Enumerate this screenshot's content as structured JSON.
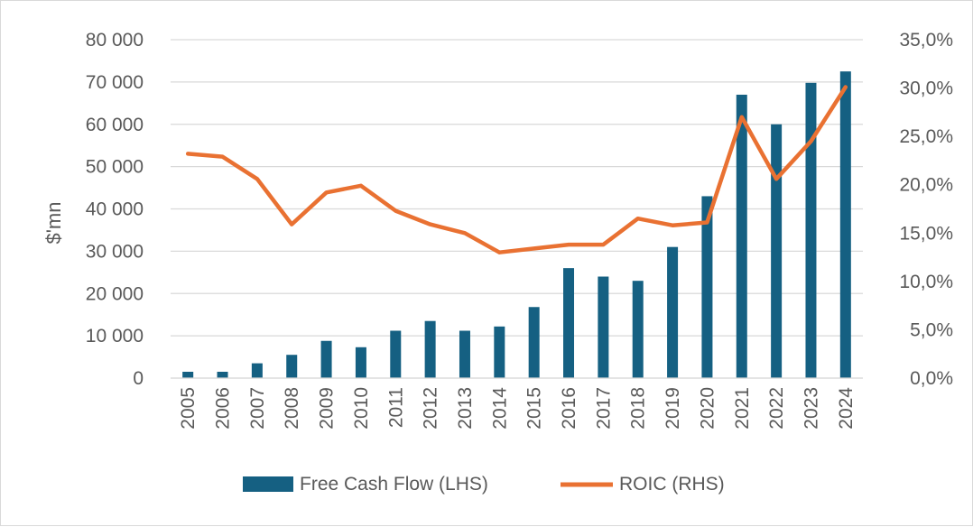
{
  "colors": {
    "bar": "#156082",
    "line": "#E97132",
    "grid": "#d9d9d9",
    "text": "#595959"
  },
  "chart_data": {
    "type": "bar+line",
    "title": "",
    "ylabel": "$'mn",
    "categories": [
      "2005",
      "2006",
      "2007",
      "2008",
      "2009",
      "2010",
      "2011",
      "2012",
      "2013",
      "2014",
      "2015",
      "2016",
      "2017",
      "2018",
      "2019",
      "2020",
      "2021",
      "2022",
      "2023",
      "2024"
    ],
    "series": [
      {
        "name": "Free Cash Flow (LHS)",
        "type": "bar",
        "axis": "left",
        "values": [
          1500,
          1500,
          3500,
          5500,
          8800,
          7300,
          11200,
          13500,
          11200,
          12200,
          16800,
          26000,
          24000,
          23000,
          31000,
          43000,
          67000,
          60000,
          69800,
          72500
        ]
      },
      {
        "name": "ROIC (RHS)",
        "type": "line",
        "axis": "right",
        "values": [
          23.2,
          22.9,
          20.6,
          15.9,
          19.2,
          19.9,
          17.3,
          15.9,
          15.0,
          13.0,
          13.4,
          13.8,
          13.8,
          16.5,
          15.8,
          16.1,
          27.0,
          20.6,
          24.5,
          30.1
        ]
      }
    ],
    "left_axis": {
      "min": 0,
      "max": 80000,
      "ticks": [
        "0",
        "10 000",
        "20 000",
        "30 000",
        "40 000",
        "50 000",
        "60 000",
        "70 000",
        "80 000"
      ]
    },
    "right_axis": {
      "min": 0,
      "max": 35,
      "ticks": [
        "0,0%",
        "5,0%",
        "10,0%",
        "15,0%",
        "20,0%",
        "25,0%",
        "30,0%",
        "35,0%"
      ]
    },
    "grid": true,
    "legend": "bottom",
    "legend_items": [
      "Free Cash Flow (LHS)",
      "ROIC (RHS)"
    ]
  }
}
